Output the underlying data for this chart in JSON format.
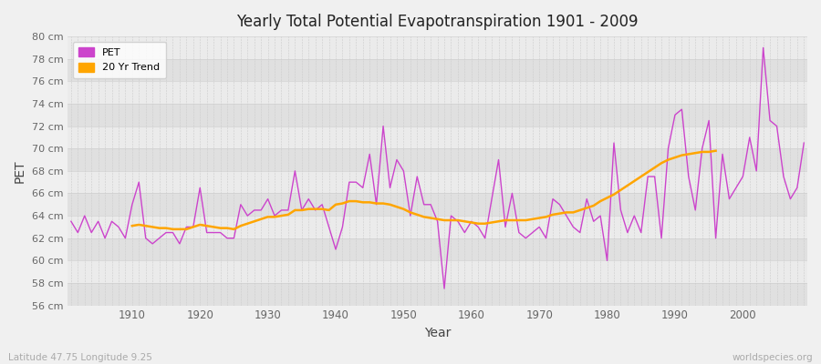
{
  "title": "Yearly Total Potential Evapotranspiration 1901 - 2009",
  "xlabel": "Year",
  "ylabel": "PET",
  "subtitle_left": "Latitude 47.75 Longitude 9.25",
  "subtitle_right": "worldspecies.org",
  "pet_color": "#cc44cc",
  "trend_color": "#FFA500",
  "bg_outer": "#f0f0f0",
  "bg_band_light": "#ebebeb",
  "bg_band_dark": "#e0e0e0",
  "ylim": [
    56,
    80
  ],
  "ytick_step": 2,
  "years": [
    1901,
    1902,
    1903,
    1904,
    1905,
    1906,
    1907,
    1908,
    1909,
    1910,
    1911,
    1912,
    1913,
    1914,
    1915,
    1916,
    1917,
    1918,
    1919,
    1920,
    1921,
    1922,
    1923,
    1924,
    1925,
    1926,
    1927,
    1928,
    1929,
    1930,
    1931,
    1932,
    1933,
    1934,
    1935,
    1936,
    1937,
    1938,
    1939,
    1940,
    1941,
    1942,
    1943,
    1944,
    1945,
    1946,
    1947,
    1948,
    1949,
    1950,
    1951,
    1952,
    1953,
    1954,
    1955,
    1956,
    1957,
    1958,
    1959,
    1960,
    1961,
    1962,
    1963,
    1964,
    1965,
    1966,
    1967,
    1968,
    1969,
    1970,
    1971,
    1972,
    1973,
    1974,
    1975,
    1976,
    1977,
    1978,
    1979,
    1980,
    1981,
    1982,
    1983,
    1984,
    1985,
    1986,
    1987,
    1988,
    1989,
    1990,
    1991,
    1992,
    1993,
    1994,
    1995,
    1996,
    1997,
    1998,
    1999,
    2000,
    2001,
    2002,
    2003,
    2004,
    2005,
    2006,
    2007,
    2008,
    2009
  ],
  "pet_values": [
    63.5,
    62.5,
    64.0,
    62.5,
    63.5,
    62.0,
    63.5,
    63.0,
    62.0,
    65.0,
    67.0,
    62.0,
    61.5,
    62.0,
    62.5,
    62.5,
    61.5,
    63.0,
    63.0,
    66.5,
    62.5,
    62.5,
    62.5,
    62.0,
    62.0,
    65.0,
    64.0,
    64.5,
    64.5,
    65.5,
    64.0,
    64.5,
    64.5,
    68.0,
    64.5,
    65.5,
    64.5,
    65.0,
    63.0,
    61.0,
    63.0,
    67.0,
    67.0,
    66.5,
    69.5,
    65.0,
    72.0,
    66.5,
    69.0,
    68.0,
    64.0,
    67.5,
    65.0,
    65.0,
    63.5,
    57.5,
    64.0,
    63.5,
    62.5,
    63.5,
    63.0,
    62.0,
    65.5,
    69.0,
    63.0,
    66.0,
    62.5,
    62.0,
    62.5,
    63.0,
    62.0,
    65.5,
    65.0,
    64.0,
    63.0,
    62.5,
    65.5,
    63.5,
    64.0,
    60.0,
    70.5,
    64.5,
    62.5,
    64.0,
    62.5,
    67.5,
    67.5,
    62.0,
    70.0,
    73.0,
    73.5,
    67.5,
    64.5,
    70.0,
    72.5,
    62.0,
    69.5,
    65.5,
    66.5,
    67.5,
    71.0,
    68.0,
    79.0,
    72.5,
    72.0,
    67.5,
    65.5,
    66.5,
    70.5
  ],
  "trend_values": [
    null,
    null,
    null,
    null,
    null,
    null,
    null,
    null,
    null,
    63.1,
    63.2,
    63.1,
    63.0,
    62.9,
    62.9,
    62.8,
    62.8,
    62.8,
    63.0,
    63.2,
    63.1,
    63.0,
    62.9,
    62.9,
    62.8,
    63.1,
    63.3,
    63.5,
    63.7,
    63.9,
    63.9,
    64.0,
    64.1,
    64.5,
    64.5,
    64.6,
    64.6,
    64.6,
    64.5,
    65.0,
    65.1,
    65.3,
    65.3,
    65.2,
    65.2,
    65.1,
    65.1,
    65.0,
    64.8,
    64.6,
    64.3,
    64.1,
    63.9,
    63.8,
    63.7,
    63.6,
    63.6,
    63.6,
    63.5,
    63.4,
    63.3,
    63.3,
    63.4,
    63.5,
    63.6,
    63.6,
    63.6,
    63.6,
    63.7,
    63.8,
    63.9,
    64.1,
    64.2,
    64.3,
    64.3,
    64.5,
    64.7,
    64.9,
    65.3,
    65.6,
    65.9,
    66.3,
    66.7,
    67.1,
    67.5,
    67.9,
    68.3,
    68.7,
    69.0,
    69.2,
    69.4,
    69.5,
    69.6,
    69.7,
    69.7,
    69.8,
    null,
    null,
    null,
    null,
    null,
    null,
    null,
    null,
    null
  ]
}
